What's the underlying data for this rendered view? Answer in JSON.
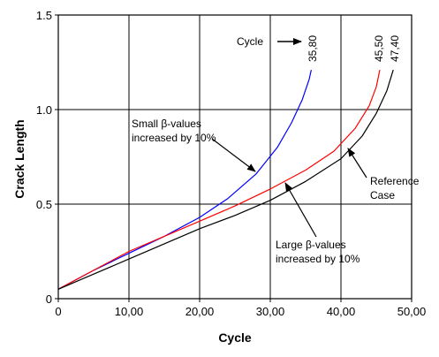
{
  "chart_data": {
    "type": "line",
    "xlabel": "Cycle",
    "ylabel": "Crack Length",
    "xlim": [
      0,
      50
    ],
    "ylim": [
      0,
      1.5
    ],
    "grid": true,
    "x_ticks": [
      {
        "value": 0,
        "label": "0"
      },
      {
        "value": 10,
        "label": "10,00"
      },
      {
        "value": 20,
        "label": "20,00"
      },
      {
        "value": 30,
        "label": "30,00"
      },
      {
        "value": 40,
        "label": "40,00"
      },
      {
        "value": 50,
        "label": "50,00"
      }
    ],
    "y_ticks": [
      {
        "value": 0,
        "label": "0"
      },
      {
        "value": 0.5,
        "label": "0.5"
      },
      {
        "value": 1.0,
        "label": "1.0"
      },
      {
        "value": 1.5,
        "label": "1.5"
      }
    ],
    "series": [
      {
        "key": "small-beta",
        "color": "#0000ff",
        "end_label": "35,80",
        "x": [
          0,
          5,
          10,
          15,
          20,
          24,
          28,
          31,
          33,
          34.5,
          35.5,
          35.8
        ],
        "y": [
          0.05,
          0.15,
          0.24,
          0.33,
          0.43,
          0.53,
          0.66,
          0.8,
          0.93,
          1.05,
          1.16,
          1.21
        ]
      },
      {
        "key": "large-beta",
        "color": "#ff0000",
        "end_label": "45,50",
        "x": [
          0,
          5,
          10,
          15,
          20,
          25,
          30,
          35,
          39,
          42,
          44,
          45,
          45.5
        ],
        "y": [
          0.05,
          0.15,
          0.25,
          0.33,
          0.41,
          0.49,
          0.58,
          0.68,
          0.78,
          0.9,
          1.02,
          1.12,
          1.21
        ]
      },
      {
        "key": "reference",
        "color": "#000000",
        "end_label": "47,40",
        "x": [
          0,
          5,
          10,
          15,
          20,
          25,
          30,
          35,
          40,
          43,
          45,
          46.5,
          47.4
        ],
        "y": [
          0.05,
          0.13,
          0.21,
          0.29,
          0.37,
          0.44,
          0.52,
          0.62,
          0.74,
          0.86,
          0.98,
          1.1,
          1.21
        ]
      }
    ],
    "annotations": {
      "cycle_label": "Cycle",
      "small_beta": [
        "Small β-values",
        "increased by 10%"
      ],
      "large_beta": [
        "Large β-values",
        "increased by 10%"
      ],
      "reference": [
        "Reference",
        "Case"
      ]
    }
  }
}
